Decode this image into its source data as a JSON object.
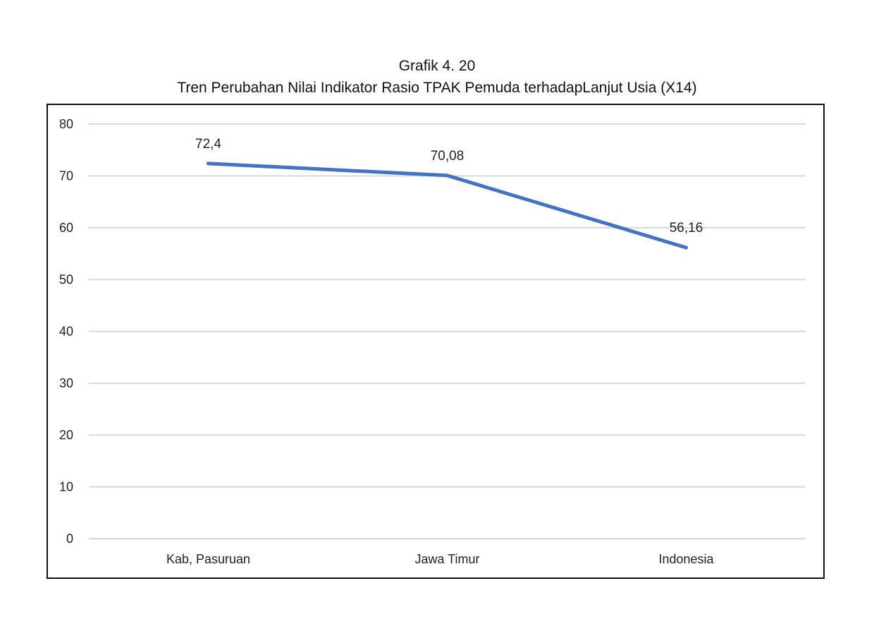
{
  "header": {
    "caption": "Grafik 4. 20",
    "title": "Tren Perubahan Nilai Indikator Rasio TPAK Pemuda terhadapLanjut Usia (X14)"
  },
  "chart_data": {
    "type": "line",
    "title": "Tren Perubahan Nilai Indikator Rasio TPAK Pemuda terhadapLanjut Usia (X14)",
    "categories": [
      "Kab, Pasuruan",
      "Jawa Timur",
      "Indonesia"
    ],
    "series": [
      {
        "values": [
          72.4,
          70.08,
          56.16
        ],
        "labels": [
          "72,4",
          "70,08",
          "56,16"
        ],
        "color": "#4472C4"
      }
    ],
    "ylim": [
      0,
      80
    ],
    "yticks": [
      0,
      10,
      20,
      30,
      40,
      50,
      60,
      70,
      80
    ],
    "grid": true,
    "gridColor": "#d9d9d9",
    "legend": "none"
  }
}
